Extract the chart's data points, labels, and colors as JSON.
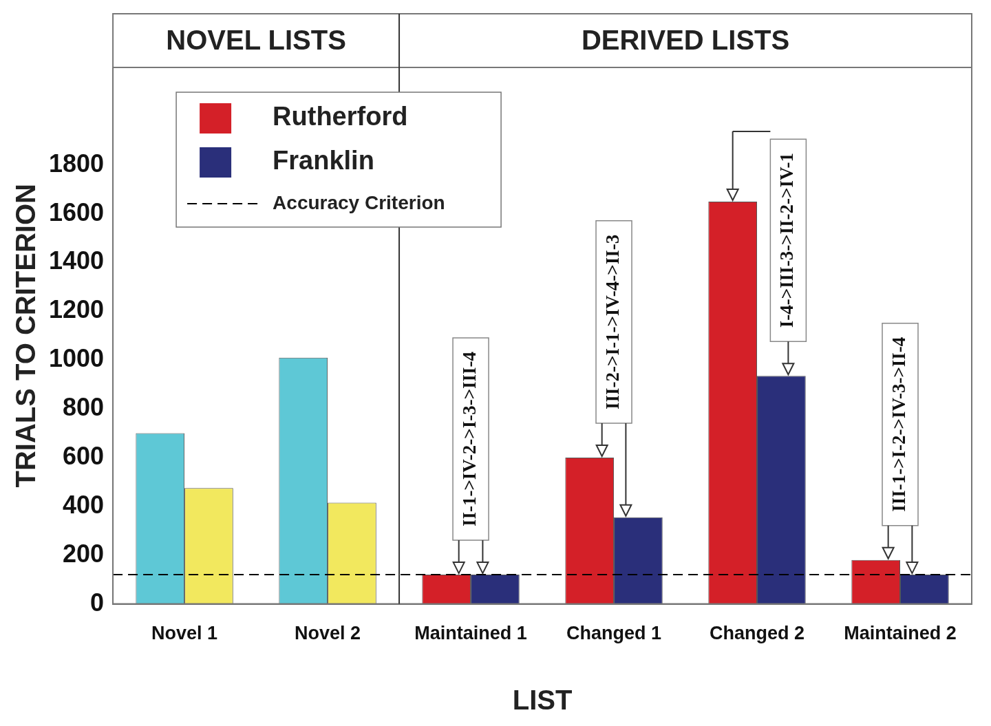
{
  "chart_data": {
    "type": "bar",
    "xlabel": "LIST",
    "ylabel": "TRIALS TO CRITERION",
    "categories": [
      "Novel 1",
      "Novel 2",
      "Maintained 1",
      "Changed 1",
      "Changed 2",
      "Maintained 2"
    ],
    "series": [
      {
        "name": "Rutherford",
        "color": "#d42028",
        "colors": [
          "#5ec8d6",
          "#5ec8d6",
          "#d42028",
          "#d42028",
          "#d42028",
          "#d42028"
        ],
        "values": [
          700,
          1010,
          120,
          600,
          1650,
          180
        ]
      },
      {
        "name": "Franklin",
        "color": "#2a2f7a",
        "colors": [
          "#f2e85e",
          "#f2e85e",
          "#2a2f7a",
          "#2a2f7a",
          "#2a2f7a",
          "#2a2f7a"
        ],
        "values": [
          475,
          415,
          120,
          355,
          935,
          120
        ]
      }
    ],
    "ylim": [
      0,
      2200
    ],
    "yticks": [
      0,
      200,
      400,
      600,
      800,
      1000,
      1200,
      1400,
      1600,
      1800
    ],
    "grid": false,
    "legend": "top left",
    "ref_lines": [
      {
        "axis": "y",
        "value": 120,
        "label": "Accuracy Criterion",
        "color": "#000000",
        "line_style": "dashed"
      }
    ],
    "annotations": [
      "NOVEL LISTS",
      "DERIVED LISTS",
      {
        "text": "II-1->IV-2->I-3->III-4",
        "x": "Maintained 1",
        "y": 120
      },
      {
        "text": "III-2->I-1->IV-4->II-3",
        "x": "Changed 1",
        "y": 600
      },
      {
        "text": "I-4->III-3->II-2->IV-1",
        "x": "Changed 2",
        "y": 935
      },
      {
        "text": "III-1->I-2->IV-3->II-4",
        "x": "Maintained 2",
        "y": 180
      }
    ]
  }
}
